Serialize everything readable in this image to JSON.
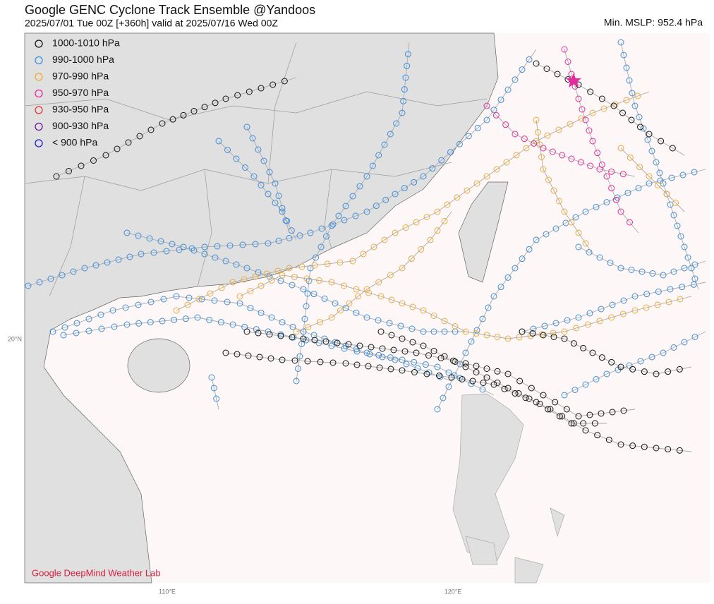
{
  "header": {
    "title": "Google GENC Cyclone Track Ensemble @Yandoos",
    "subtitle": "2025/07/01  Tue  00Z [+360h] valid at 2025/07/16  Wed  00Z",
    "min_mslp": "Min. MSLP: 952.4 hPa"
  },
  "legend": [
    {
      "label": "1000-1010 hPa",
      "color": "#111111"
    },
    {
      "label": "990-1000 hPa",
      "color": "#3a8ee0"
    },
    {
      "label": "970-990 hPa",
      "color": "#eeaa38"
    },
    {
      "label": "950-970 hPa",
      "color": "#e6299b"
    },
    {
      "label": "930-950 hPa",
      "color": "#e0303a"
    },
    {
      "label": "900-930 hPa",
      "color": "#6a1b9a"
    },
    {
      "label": "< 900 hPa",
      "color": "#1a1ad0"
    }
  ],
  "axes": {
    "x_labels": [
      "110°E",
      "120°E"
    ],
    "y_labels": [
      "20°N"
    ]
  },
  "credit": "Google DeepMind Weather Lab"
}
